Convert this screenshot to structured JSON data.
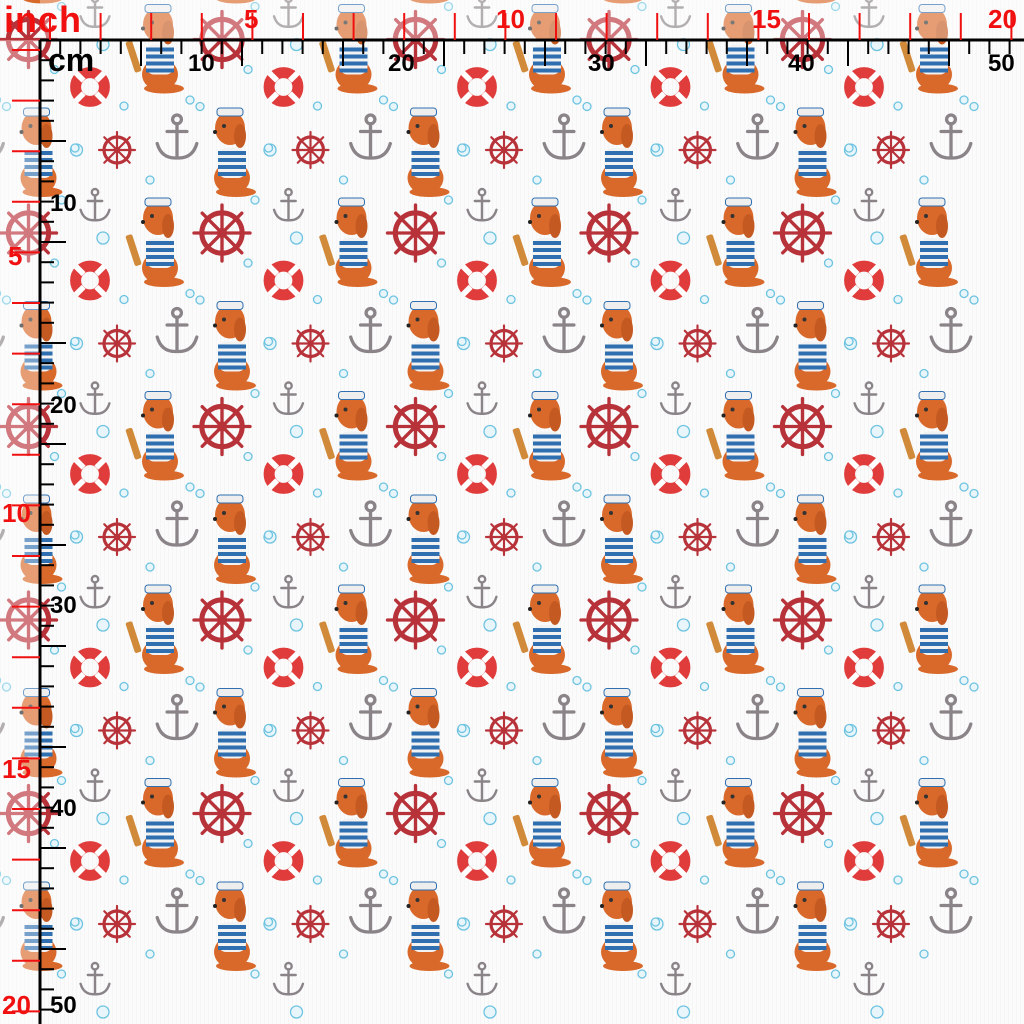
{
  "rulers": {
    "inch_unit": "inch",
    "cm_unit": "cm",
    "top_inch_labels": [
      "5",
      "10",
      "15",
      "20"
    ],
    "top_cm_labels": [
      "10",
      "20",
      "30",
      "40",
      "50"
    ],
    "left_inch_labels": [
      "5",
      "10",
      "15",
      "20"
    ],
    "left_cm_labels": [
      "10",
      "20",
      "30",
      "40",
      "50"
    ],
    "inch_color": "#f01010",
    "cm_color": "#000000"
  },
  "pattern": {
    "motifs": [
      "sailor-dog-standing",
      "sailor-dog-with-spyglass",
      "ship-wheel-large",
      "ship-wheel-small",
      "anchor-large",
      "anchor-small",
      "lifebuoy",
      "bubble"
    ],
    "colors": {
      "dog": "#d9692a",
      "stripes": "#2f6fb0",
      "wheel": "#b8323a",
      "anchor": "#8a8488",
      "lifebuoy": "#e03c3c",
      "bubble": "#6ec3e0"
    }
  }
}
